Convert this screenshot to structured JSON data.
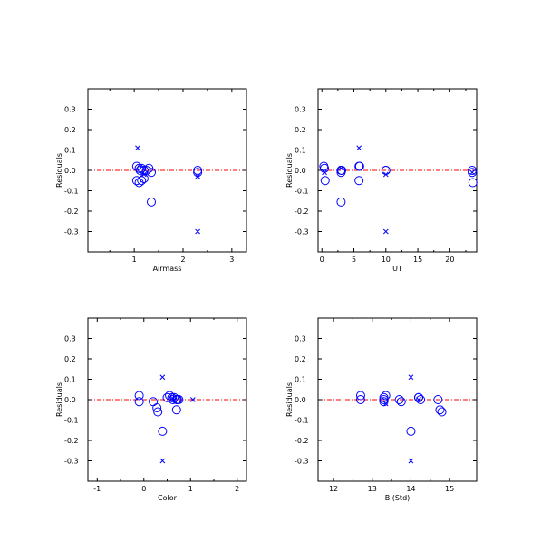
{
  "colors": {
    "marker": "#0000ff",
    "zero_line": "#ff0000",
    "frame": "#000000"
  },
  "chart_data": [
    {
      "type": "scatter",
      "xlabel": "Airmass",
      "ylabel": "Residuals",
      "xlim": [
        0.05,
        3.3
      ],
      "ylim": [
        -0.4,
        0.4
      ],
      "xticks": [
        1,
        2,
        3
      ],
      "xminor": [
        0.5,
        1.5,
        2.5
      ],
      "yticks": [
        -0.3,
        -0.2,
        -0.1,
        0.0,
        0.1,
        0.2,
        0.3
      ],
      "ytick_labels": [
        "-0.3",
        "-0.2",
        "-0.1",
        "0.0",
        "0.1",
        "0.2",
        "0.3"
      ],
      "zero_line": 0,
      "series": [
        {
          "marker": "circle",
          "points": [
            [
              1.05,
              0.02
            ],
            [
              1.1,
              0.01
            ],
            [
              1.12,
              0.0
            ],
            [
              1.15,
              0.01
            ],
            [
              1.2,
              0.0
            ],
            [
              1.25,
              0.0
            ],
            [
              1.3,
              0.01
            ],
            [
              1.35,
              -0.01
            ],
            [
              1.05,
              -0.05
            ],
            [
              1.1,
              -0.06
            ],
            [
              1.15,
              -0.05
            ],
            [
              1.2,
              -0.04
            ],
            [
              1.35,
              -0.155
            ],
            [
              2.3,
              0.0
            ],
            [
              2.3,
              -0.01
            ]
          ]
        },
        {
          "marker": "cross",
          "points": [
            [
              1.07,
              0.11
            ],
            [
              1.2,
              -0.02
            ],
            [
              2.3,
              -0.03
            ],
            [
              2.3,
              -0.3
            ]
          ]
        }
      ]
    },
    {
      "type": "scatter",
      "xlabel": "UT",
      "ylabel": "Residuals",
      "xlim": [
        -0.6,
        24.2
      ],
      "ylim": [
        -0.4,
        0.4
      ],
      "xticks": [
        0,
        5,
        10,
        15,
        20
      ],
      "xminor": [
        2.5,
        7.5,
        12.5,
        17.5,
        22.5
      ],
      "yticks": [
        -0.3,
        -0.2,
        -0.1,
        0.0,
        0.1,
        0.2,
        0.3
      ],
      "ytick_labels": [
        "-0.3",
        "-0.2",
        "-0.1",
        "0.0",
        "0.1",
        "0.2",
        "0.3"
      ],
      "zero_line": 0,
      "series": [
        {
          "marker": "circle",
          "points": [
            [
              0.3,
              0.02
            ],
            [
              0.4,
              0.01
            ],
            [
              0.5,
              -0.05
            ],
            [
              3.0,
              0.0
            ],
            [
              3.1,
              0.0
            ],
            [
              3.0,
              -0.01
            ],
            [
              3.0,
              -0.155
            ],
            [
              5.8,
              0.02
            ],
            [
              5.9,
              0.02
            ],
            [
              5.8,
              -0.05
            ],
            [
              10.0,
              0.0
            ],
            [
              10.0,
              0.0
            ],
            [
              23.5,
              0.0
            ],
            [
              23.5,
              -0.01
            ],
            [
              23.6,
              -0.06
            ]
          ]
        },
        {
          "marker": "cross",
          "points": [
            [
              0.4,
              -0.01
            ],
            [
              3.0,
              0.01
            ],
            [
              5.8,
              0.11
            ],
            [
              10.0,
              -0.02
            ],
            [
              10.0,
              -0.3
            ],
            [
              23.5,
              -0.01
            ]
          ]
        }
      ]
    },
    {
      "type": "scatter",
      "xlabel": "Color",
      "ylabel": "Residuals",
      "xlim": [
        -1.2,
        2.2
      ],
      "ylim": [
        -0.4,
        0.4
      ],
      "xticks": [
        -1,
        0,
        1,
        2
      ],
      "xminor": [
        -0.5,
        0.5,
        1.5
      ],
      "yticks": [
        -0.3,
        -0.2,
        -0.1,
        0.0,
        0.1,
        0.2,
        0.3
      ],
      "ytick_labels": [
        "-0.3",
        "-0.2",
        "-0.1",
        "0.0",
        "0.1",
        "0.2",
        "0.3"
      ],
      "zero_line": 0,
      "series": [
        {
          "marker": "circle",
          "points": [
            [
              -0.1,
              0.02
            ],
            [
              -0.1,
              -0.01
            ],
            [
              0.2,
              -0.01
            ],
            [
              0.28,
              -0.04
            ],
            [
              0.3,
              -0.06
            ],
            [
              0.4,
              -0.155
            ],
            [
              0.5,
              0.01
            ],
            [
              0.55,
              0.02
            ],
            [
              0.6,
              0.01
            ],
            [
              0.62,
              0.0
            ],
            [
              0.65,
              0.01
            ],
            [
              0.7,
              0.0
            ],
            [
              0.72,
              0.0
            ],
            [
              0.75,
              0.0
            ],
            [
              0.7,
              -0.05
            ]
          ]
        },
        {
          "marker": "cross",
          "points": [
            [
              0.4,
              0.11
            ],
            [
              0.4,
              -0.3
            ],
            [
              1.05,
              0.0
            ],
            [
              0.65,
              0.0
            ]
          ]
        }
      ]
    },
    {
      "type": "scatter",
      "xlabel": "B (Std)",
      "ylabel": "Residuals",
      "xlim": [
        11.6,
        15.7
      ],
      "ylim": [
        -0.4,
        0.4
      ],
      "xticks": [
        12,
        13,
        14,
        15
      ],
      "xminor": [
        12.5,
        13.5,
        14.5
      ],
      "yticks": [
        -0.3,
        -0.2,
        -0.1,
        0.0,
        0.1,
        0.2,
        0.3
      ],
      "ytick_labels": [
        "-0.3",
        "-0.2",
        "-0.1",
        "0.0",
        "0.1",
        "0.2",
        "0.3"
      ],
      "zero_line": 0,
      "series": [
        {
          "marker": "circle",
          "points": [
            [
              12.7,
              0.02
            ],
            [
              12.7,
              0.0
            ],
            [
              13.3,
              0.01
            ],
            [
              13.3,
              -0.01
            ],
            [
              13.35,
              0.02
            ],
            [
              13.7,
              0.0
            ],
            [
              13.75,
              -0.01
            ],
            [
              14.0,
              -0.155
            ],
            [
              14.2,
              0.01
            ],
            [
              14.25,
              0.0
            ],
            [
              14.7,
              0.0
            ],
            [
              14.75,
              -0.05
            ],
            [
              14.8,
              -0.06
            ],
            [
              14.2,
              0.01
            ],
            [
              13.3,
              0.0
            ]
          ]
        },
        {
          "marker": "cross",
          "points": [
            [
              14.0,
              0.11
            ],
            [
              14.0,
              -0.3
            ],
            [
              14.2,
              0.0
            ],
            [
              13.35,
              -0.02
            ]
          ]
        }
      ]
    }
  ]
}
